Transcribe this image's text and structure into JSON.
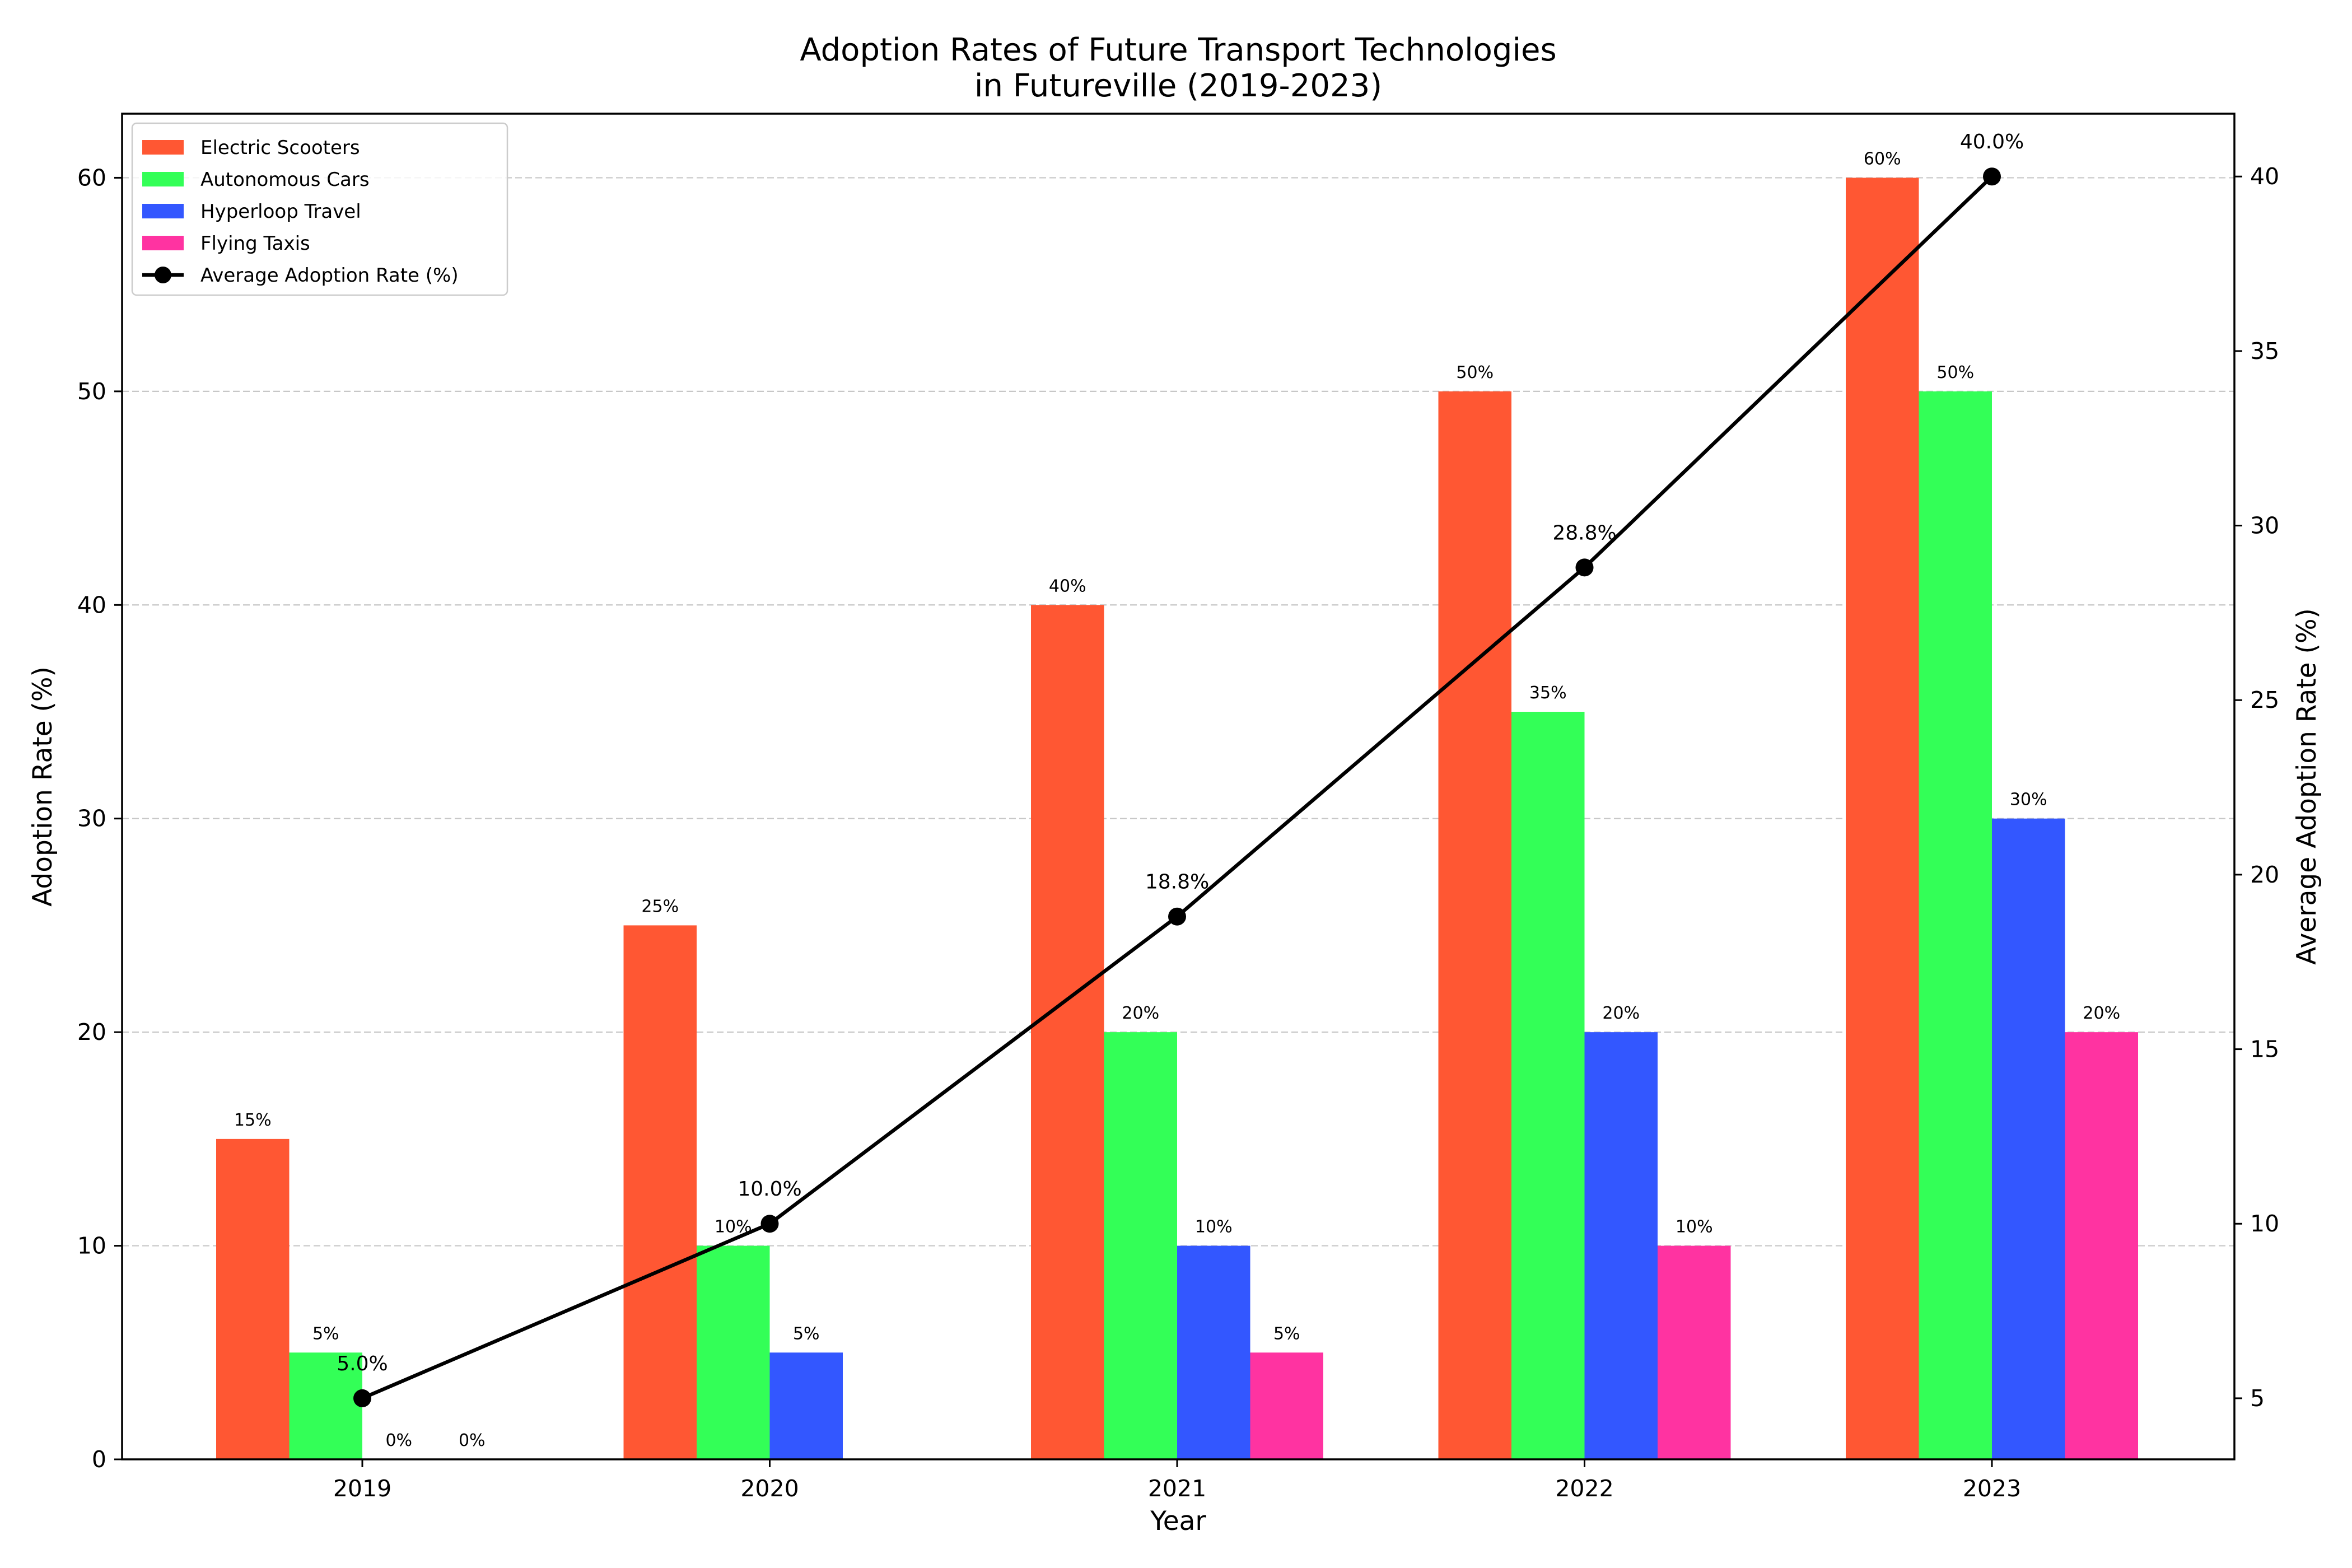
{
  "chart_data": {
    "type": "bar",
    "title": "Adoption Rates of Future Transport Technologies\nin Futureville (2019-2023)",
    "xlabel": "Year",
    "ylabel": "Adoption Rate (%)",
    "y2label": "Average Adoption Rate (%)",
    "categories": [
      "2019",
      "2020",
      "2021",
      "2022",
      "2023"
    ],
    "ylim": [
      0,
      63
    ],
    "y2lim": [
      3.25,
      41.8
    ],
    "yticks": [
      0,
      10,
      20,
      30,
      40,
      50,
      60
    ],
    "y2ticks": [
      5,
      10,
      15,
      20,
      25,
      30,
      35,
      40
    ],
    "grid": "horizontal dashed",
    "legend_position": "top-left",
    "series": [
      {
        "name": "Electric Scooters",
        "color": "#FF5733",
        "values": [
          15,
          25,
          40,
          50,
          60
        ],
        "labels": [
          "15%",
          "25%",
          "40%",
          "50%",
          "60%"
        ]
      },
      {
        "name": "Autonomous Cars",
        "color": "#33FF57",
        "values": [
          5,
          10,
          20,
          35,
          50
        ],
        "labels": [
          "5%",
          "10%",
          "20%",
          "35%",
          "50%"
        ]
      },
      {
        "name": "Hyperloop Travel",
        "color": "#3357FF",
        "values": [
          0,
          5,
          10,
          20,
          30
        ],
        "labels": [
          "0%",
          "5%",
          "10%",
          "20%",
          "30%"
        ]
      },
      {
        "name": "Flying Taxis",
        "color": "#FF33A1",
        "values": [
          0,
          0,
          5,
          10,
          20
        ],
        "labels": [
          "0%",
          "",
          "5%",
          "10%",
          "20%"
        ]
      }
    ],
    "line_series": {
      "name": "Average Adoption Rate (%)",
      "color": "#000000",
      "axis": "right",
      "values": [
        5.0,
        10.0,
        18.8,
        28.8,
        40.0
      ],
      "labels": [
        "5.0%",
        "10.0%",
        "18.8%",
        "28.8%",
        "40.0%"
      ]
    }
  }
}
